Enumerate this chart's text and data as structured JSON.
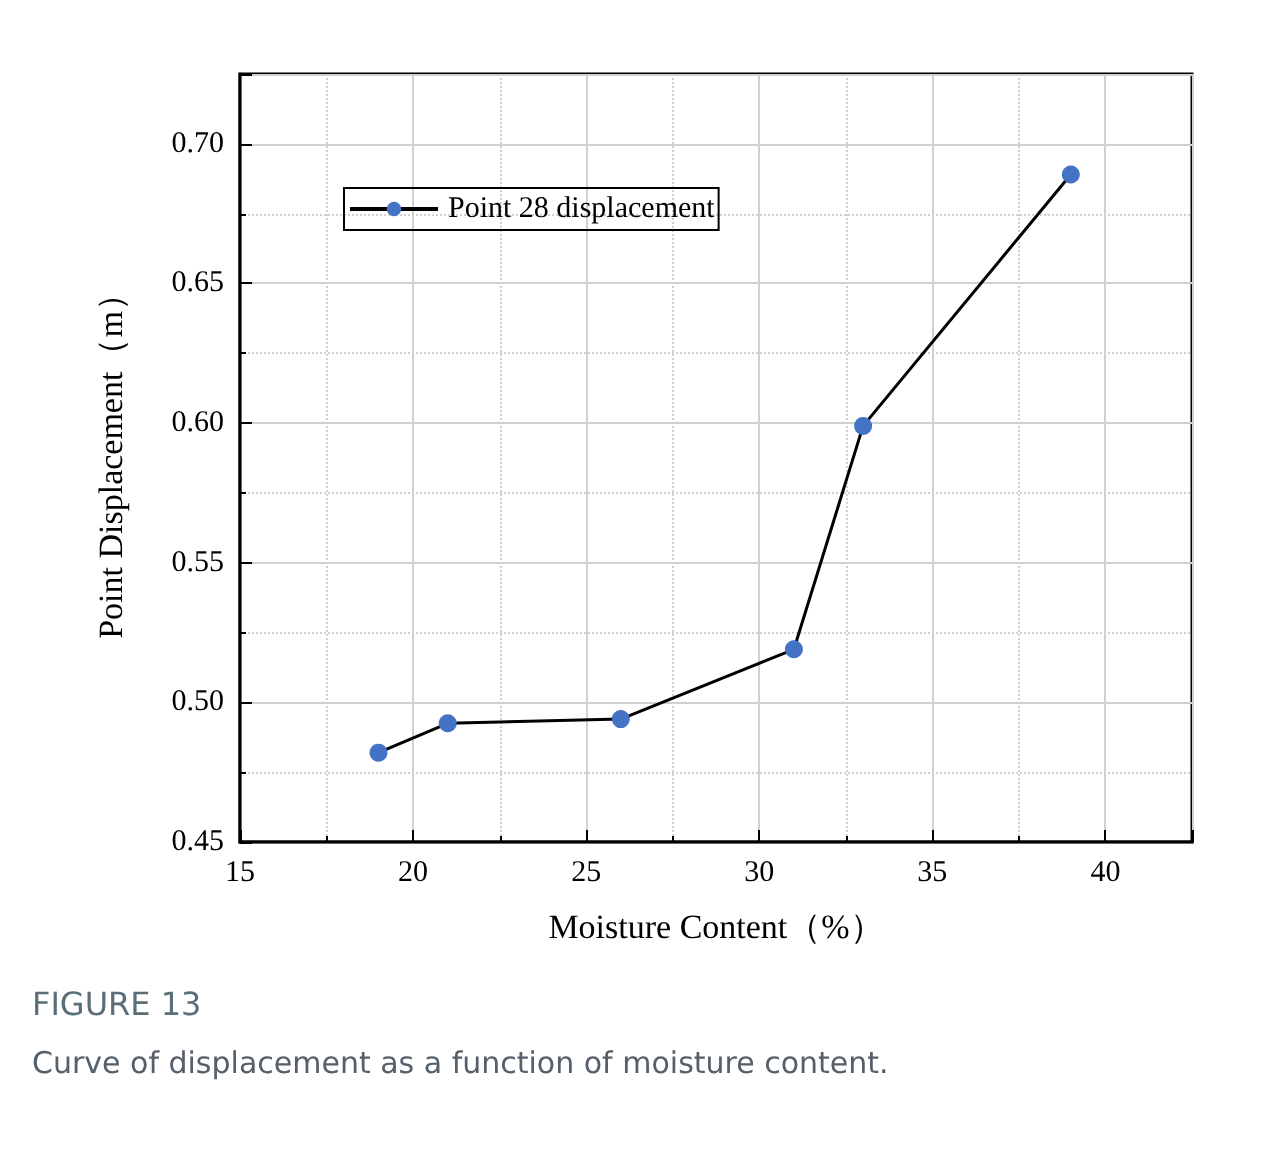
{
  "chart_data": {
    "type": "line",
    "xlabel": "Moisture Content（%）",
    "ylabel": "Point Displacement（m）",
    "x": [
      19,
      21,
      26,
      31,
      33,
      39
    ],
    "series": [
      {
        "name": "Point 28 displacement",
        "color": "#4472c4",
        "values": [
          0.482,
          0.4925,
          0.494,
          0.519,
          0.599,
          0.689
        ]
      }
    ],
    "xlim": [
      15,
      42.5
    ],
    "xticks": [
      15,
      20,
      25,
      30,
      35,
      40
    ],
    "ylim": [
      0.45,
      0.725
    ],
    "yticks": [
      {
        "value": 0.45,
        "label": "0.45"
      },
      {
        "value": 0.5,
        "label": "0.50"
      },
      {
        "value": 0.55,
        "label": "0.55"
      },
      {
        "value": 0.6,
        "label": "0.60"
      },
      {
        "value": 0.65,
        "label": "0.65"
      },
      {
        "value": 0.7,
        "label": "0.70"
      }
    ],
    "grid": true,
    "legend": "top left",
    "marker": "circle",
    "line_style": "solid",
    "annotations": [
      "FIGURE 13",
      "Curve of displacement as a function of moisture content."
    ]
  }
}
